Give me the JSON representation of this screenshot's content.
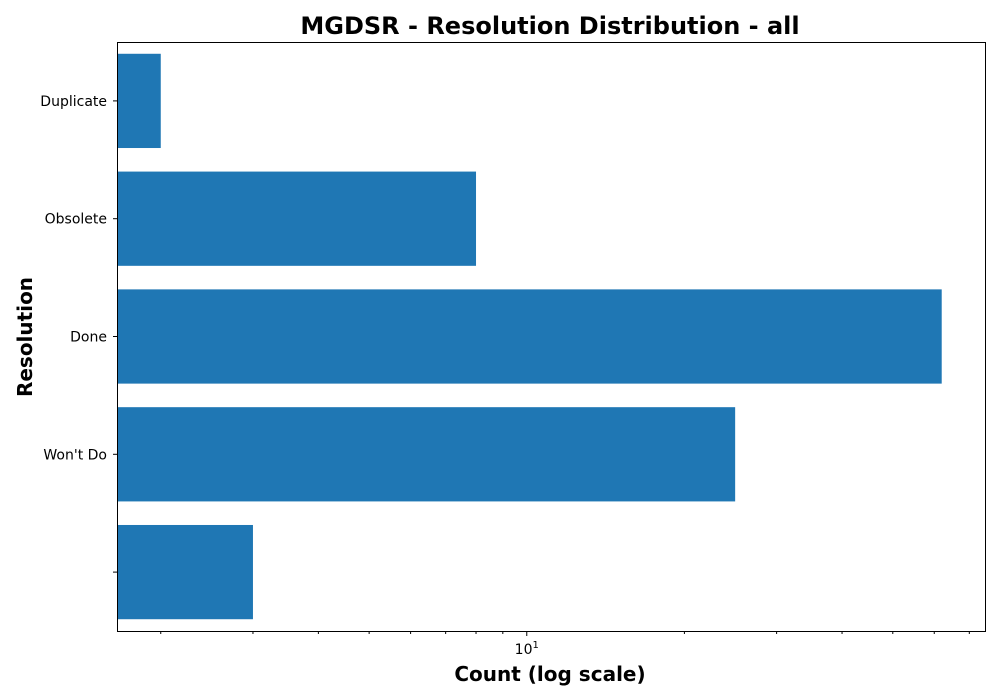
{
  "chart_data": {
    "type": "bar",
    "orientation": "horizontal",
    "title": "MGDSR - Resolution Distribution - all",
    "xlabel": "Count (log scale)",
    "ylabel": "Resolution",
    "x_scale": "log",
    "xlim": [
      1.65,
      75
    ],
    "xtick_labels": [
      {
        "value": 10,
        "base": "10",
        "exp": "1"
      }
    ],
    "categories": [
      "Duplicate",
      "Obsolete",
      "Done",
      "Won't Do",
      ""
    ],
    "values": [
      2,
      8,
      62,
      25,
      3
    ],
    "bar_color": "#1f77b4",
    "grid": false,
    "legend": "none"
  }
}
